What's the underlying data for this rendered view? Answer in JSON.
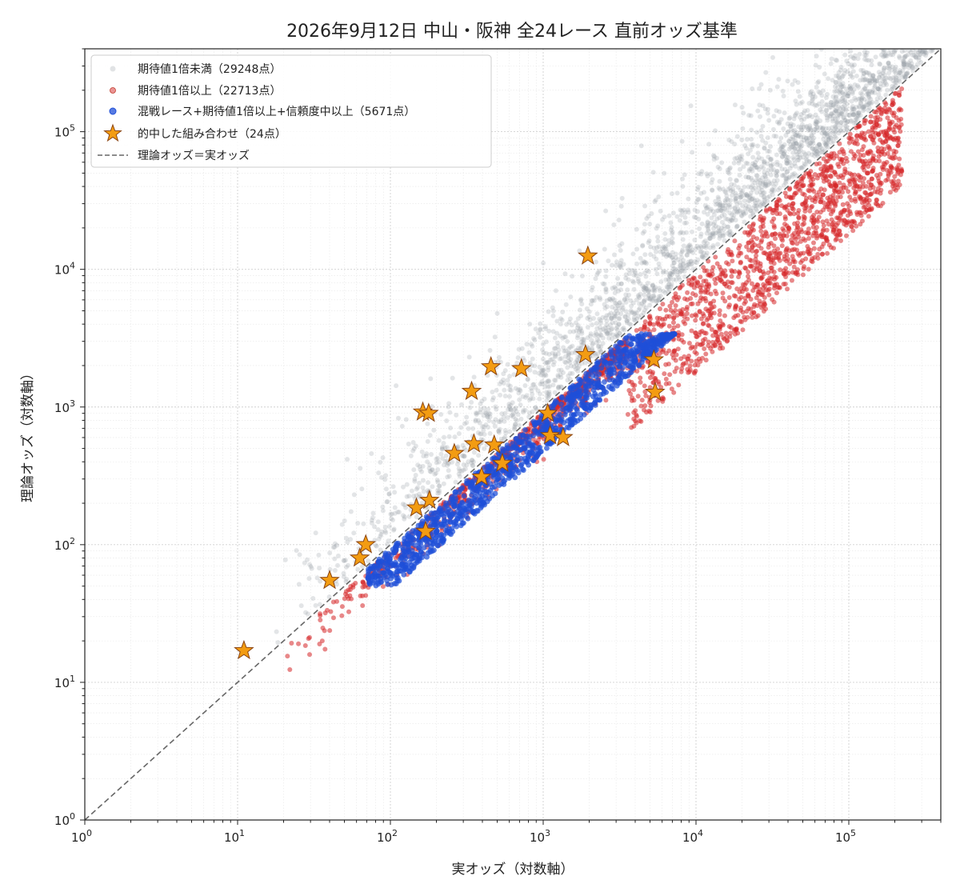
{
  "chart_data": {
    "type": "scatter",
    "title": "2026年9月12日 中山・阪神 全24レース 直前オッズ基準",
    "xlabel": "実オッズ（対数軸）",
    "ylabel": "理論オッズ（対数軸）",
    "x_scale": "log",
    "y_scale": "log",
    "xlim": [
      1,
      400000
    ],
    "ylim": [
      1,
      400000
    ],
    "x_ticks": [
      {
        "value": 1,
        "base": "10",
        "exp": "0"
      },
      {
        "value": 10,
        "base": "10",
        "exp": "1"
      },
      {
        "value": 100,
        "base": "10",
        "exp": "2"
      },
      {
        "value": 1000,
        "base": "10",
        "exp": "3"
      },
      {
        "value": 10000,
        "base": "10",
        "exp": "4"
      },
      {
        "value": 100000,
        "base": "10",
        "exp": "5"
      }
    ],
    "y_ticks": [
      {
        "value": 1,
        "base": "10",
        "exp": "0"
      },
      {
        "value": 10,
        "base": "10",
        "exp": "1"
      },
      {
        "value": 100,
        "base": "10",
        "exp": "2"
      },
      {
        "value": 1000,
        "base": "10",
        "exp": "3"
      },
      {
        "value": 10000,
        "base": "10",
        "exp": "4"
      },
      {
        "value": 100000,
        "base": "10",
        "exp": "5"
      }
    ],
    "grid": true,
    "legend_position": "top-left",
    "series": [
      {
        "name": "期待値1倍未満（29248点）",
        "color": "#9aa1aa",
        "marker": "circle",
        "count": 29248
      },
      {
        "name": "期待値1倍以上（22713点）",
        "color": "#d62728",
        "marker": "circle",
        "count": 22713
      },
      {
        "name": "混戦レース+期待値1倍以上+信頼度中以上（5671点）",
        "color": "#1f4fd8",
        "marker": "circle",
        "count": 5671
      },
      {
        "name": "的中した組み合わせ（24点）",
        "color": "#f39c12",
        "marker": "star",
        "count": 24
      },
      {
        "name": "理論オッズ＝実オッズ",
        "color": "#666666",
        "marker": "dashed-line"
      }
    ],
    "hits": [
      {
        "x": 11,
        "y": 17
      },
      {
        "x": 40,
        "y": 55
      },
      {
        "x": 63,
        "y": 80
      },
      {
        "x": 69,
        "y": 100
      },
      {
        "x": 148,
        "y": 185
      },
      {
        "x": 170,
        "y": 125
      },
      {
        "x": 180,
        "y": 210
      },
      {
        "x": 163,
        "y": 920
      },
      {
        "x": 178,
        "y": 900
      },
      {
        "x": 262,
        "y": 460
      },
      {
        "x": 340,
        "y": 1300
      },
      {
        "x": 352,
        "y": 540
      },
      {
        "x": 395,
        "y": 310
      },
      {
        "x": 455,
        "y": 1960
      },
      {
        "x": 478,
        "y": 530
      },
      {
        "x": 540,
        "y": 390
      },
      {
        "x": 720,
        "y": 1900
      },
      {
        "x": 1070,
        "y": 900
      },
      {
        "x": 1110,
        "y": 620
      },
      {
        "x": 1890,
        "y": 2400
      },
      {
        "x": 1960,
        "y": 12500
      },
      {
        "x": 5300,
        "y": 2200
      },
      {
        "x": 5400,
        "y": 1280
      },
      {
        "x": 1350,
        "y": 600
      }
    ]
  }
}
